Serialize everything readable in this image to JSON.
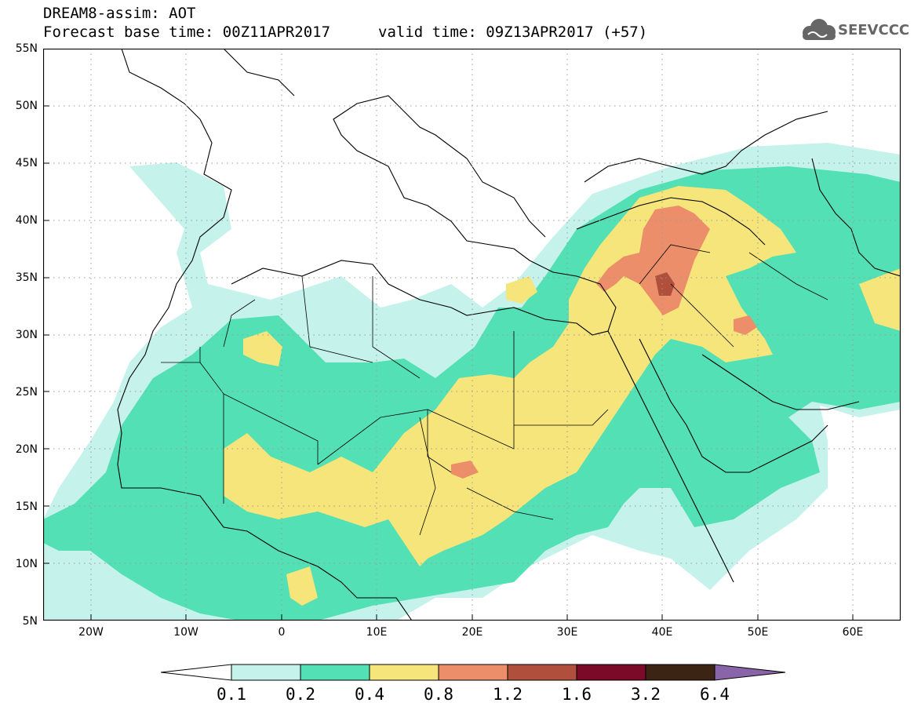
{
  "title": {
    "model_line": "DREAM8-assim: AOT",
    "base_time_line": "Forecast base time: 00Z11APR2017",
    "valid_time_line": "valid time: 09Z13APR2017 (+57)"
  },
  "logo": {
    "text": "SEEVCCC",
    "icon": "cloud-logo-icon"
  },
  "map": {
    "lat_labels": [
      "55N",
      "50N",
      "45N",
      "40N",
      "35N",
      "30N",
      "25N",
      "20N",
      "15N",
      "10N",
      "5N"
    ],
    "lon_labels": [
      "20W",
      "10W",
      "0",
      "10E",
      "20E",
      "30E",
      "40E",
      "50E",
      "60E"
    ],
    "lat_range": [
      5,
      55
    ],
    "lon_range": [
      -25,
      65
    ],
    "grid": "dotted"
  },
  "legend": {
    "labels": [
      "0.1",
      "0.2",
      "0.4",
      "0.8",
      "1.2",
      "1.6",
      "3.2",
      "6.4"
    ],
    "colors": [
      "#ffffff",
      "#c6f2ec",
      "#52e0b4",
      "#f6e57a",
      "#ec8e6a",
      "#b0503c",
      "#7a0a28",
      "#3c2414",
      "#8a64a8"
    ]
  }
}
